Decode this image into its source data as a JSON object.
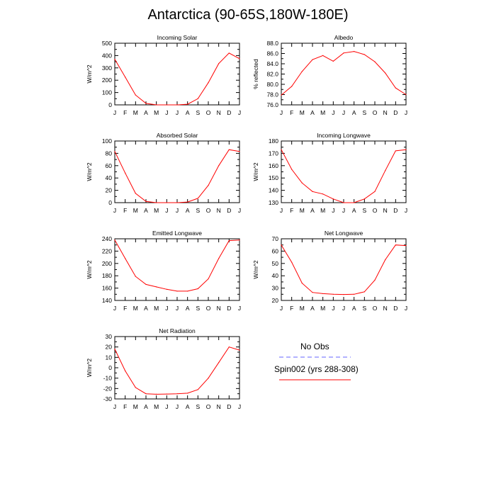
{
  "title": "Antarctica (90-65S,180W-180E)",
  "colors": {
    "model_line": "#ff0000",
    "obs_line": "#6666ff",
    "axis": "#000000"
  },
  "legend": {
    "entries": [
      {
        "label": "No Obs",
        "style": "dashed",
        "color": "#6666ff"
      },
      {
        "label": "Spin002 (yrs 288-308)",
        "style": "solid",
        "color": "#ff0000"
      }
    ]
  },
  "chart_data": [
    {
      "type": "line",
      "title": "Incoming Solar",
      "ylabel": "W/m^2",
      "categories": [
        "J",
        "F",
        "M",
        "A",
        "M",
        "J",
        "J",
        "A",
        "S",
        "O",
        "N",
        "D",
        "J"
      ],
      "ylim": [
        0,
        500
      ],
      "yticks": [
        "0",
        "100",
        "200",
        "300",
        "400",
        "500"
      ],
      "series": [
        {
          "name": "Spin002 (yrs 288-308)",
          "values": [
            370,
            225,
            80,
            12,
            0,
            0,
            0,
            5,
            50,
            180,
            335,
            420,
            375
          ]
        }
      ]
    },
    {
      "type": "line",
      "title": "Albedo",
      "ylabel": "% reflected",
      "categories": [
        "J",
        "F",
        "M",
        "A",
        "M",
        "J",
        "J",
        "A",
        "S",
        "O",
        "N",
        "D",
        "J"
      ],
      "ylim": [
        76,
        88
      ],
      "yticks": [
        "76.0",
        "78.0",
        "80.0",
        "82.0",
        "84.0",
        "86.0",
        "88.0"
      ],
      "series": [
        {
          "name": "Spin002 (yrs 288-308)",
          "values": [
            77.9,
            79.6,
            82.5,
            84.8,
            85.6,
            84.5,
            86.1,
            86.4,
            85.8,
            84.4,
            82.2,
            79.3,
            78.0
          ]
        }
      ]
    },
    {
      "type": "line",
      "title": "Absorbed Solar",
      "ylabel": "W/m^2",
      "categories": [
        "J",
        "F",
        "M",
        "A",
        "M",
        "J",
        "J",
        "A",
        "S",
        "O",
        "N",
        "D",
        "J"
      ],
      "ylim": [
        0,
        100
      ],
      "yticks": [
        "0",
        "20",
        "40",
        "60",
        "80",
        "100"
      ],
      "series": [
        {
          "name": "Spin002 (yrs 288-308)",
          "values": [
            83,
            48,
            15,
            2,
            0,
            0,
            0,
            1,
            7,
            28,
            60,
            86,
            83
          ]
        }
      ]
    },
    {
      "type": "line",
      "title": "Incoming Longwave",
      "ylabel": "W/m^2",
      "categories": [
        "J",
        "F",
        "M",
        "A",
        "M",
        "J",
        "J",
        "A",
        "S",
        "O",
        "N",
        "D",
        "J"
      ],
      "ylim": [
        130,
        180
      ],
      "yticks": [
        "130",
        "140",
        "150",
        "160",
        "170",
        "180"
      ],
      "series": [
        {
          "name": "Spin002 (yrs 288-308)",
          "values": [
            173,
            157,
            146,
            139,
            137,
            133,
            130,
            130,
            133,
            139,
            156,
            172,
            173
          ]
        }
      ]
    },
    {
      "type": "line",
      "title": "Emitted Longwave",
      "ylabel": "W/m^2",
      "categories": [
        "J",
        "F",
        "M",
        "A",
        "M",
        "J",
        "J",
        "A",
        "S",
        "O",
        "N",
        "D",
        "J"
      ],
      "ylim": [
        140,
        240
      ],
      "yticks": [
        "140",
        "160",
        "180",
        "200",
        "220",
        "240"
      ],
      "series": [
        {
          "name": "Spin002 (yrs 288-308)",
          "values": [
            238,
            208,
            179,
            166,
            162,
            158,
            155,
            155,
            159,
            175,
            208,
            237,
            238
          ]
        }
      ]
    },
    {
      "type": "line",
      "title": "Net Longwave",
      "ylabel": "W/m^2",
      "categories": [
        "J",
        "F",
        "M",
        "A",
        "M",
        "J",
        "J",
        "A",
        "S",
        "O",
        "N",
        "D",
        "J"
      ],
      "ylim": [
        20,
        70
      ],
      "yticks": [
        "20",
        "30",
        "40",
        "50",
        "60",
        "70"
      ],
      "series": [
        {
          "name": "Spin002 (yrs 288-308)",
          "values": [
            65,
            51,
            34,
            26.5,
            25.5,
            25,
            24.8,
            25,
            27,
            36.5,
            53,
            65,
            64.5
          ]
        }
      ]
    },
    {
      "type": "line",
      "title": "Net Radiation",
      "ylabel": "W/m^2",
      "categories": [
        "J",
        "F",
        "M",
        "A",
        "M",
        "J",
        "J",
        "A",
        "S",
        "O",
        "N",
        "D",
        "J"
      ],
      "ylim": [
        -30,
        30
      ],
      "yticks": [
        "-30",
        "-20",
        "-10",
        "0",
        "10",
        "20",
        "30"
      ],
      "series": [
        {
          "name": "Spin002 (yrs 288-308)",
          "values": [
            18,
            -3,
            -19,
            -25,
            -25.5,
            -25.3,
            -25,
            -24.5,
            -21,
            -10,
            5,
            20,
            17
          ]
        }
      ]
    }
  ]
}
